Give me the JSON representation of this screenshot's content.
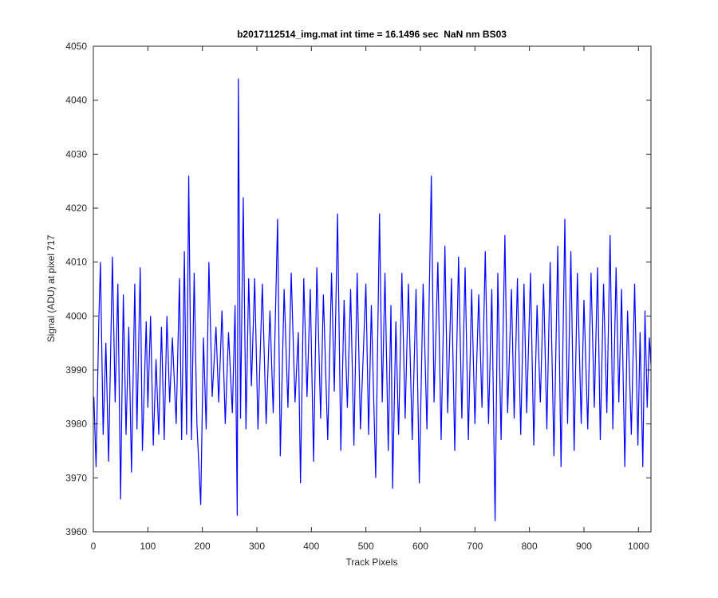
{
  "chart_data": {
    "type": "line",
    "title": "b2017112514_img.mat int time = 16.1496 sec  NaN nm BS03",
    "xlabel": "Track Pixels",
    "ylabel": "Signal (ADU) at pixel 717",
    "xlim": [
      0,
      1023
    ],
    "ylim": [
      3960,
      4050
    ],
    "xticks": [
      0,
      100,
      200,
      300,
      400,
      500,
      600,
      700,
      800,
      900,
      1000
    ],
    "yticks": [
      3960,
      3970,
      3980,
      3990,
      4000,
      4010,
      4020,
      4030,
      4040,
      4050
    ],
    "color": "#0000ff",
    "x": [
      1,
      5,
      10,
      13,
      18,
      23,
      28,
      35,
      40,
      45,
      50,
      55,
      60,
      65,
      70,
      76,
      80,
      86,
      90,
      97,
      100,
      105,
      110,
      115,
      120,
      125,
      130,
      135,
      140,
      145,
      152,
      158,
      162,
      167,
      171,
      175,
      180,
      185,
      190,
      197,
      202,
      207,
      212,
      218,
      225,
      230,
      236,
      242,
      248,
      255,
      260,
      264,
      266,
      270,
      275,
      280,
      285,
      290,
      296,
      302,
      310,
      317,
      324,
      330,
      338,
      343,
      350,
      357,
      363,
      370,
      376,
      380,
      386,
      392,
      398,
      404,
      410,
      417,
      422,
      430,
      437,
      442,
      448,
      454,
      460,
      466,
      472,
      478,
      484,
      490,
      500,
      505,
      510,
      518,
      525,
      530,
      535,
      541,
      546,
      549,
      555,
      560,
      566,
      572,
      578,
      585,
      592,
      598,
      605,
      612,
      620,
      625,
      632,
      638,
      645,
      650,
      657,
      663,
      670,
      676,
      682,
      688,
      694,
      700,
      707,
      713,
      719,
      725,
      731,
      737,
      742,
      748,
      755,
      760,
      767,
      772,
      778,
      784,
      790,
      795,
      802,
      808,
      814,
      820,
      826,
      832,
      838,
      845,
      852,
      858,
      865,
      870,
      876,
      882,
      888,
      895,
      900,
      907,
      913,
      919,
      925,
      930,
      936,
      942,
      948,
      953,
      959,
      964,
      969,
      975,
      980,
      987,
      993,
      999,
      1003,
      1008,
      1012,
      1016,
      1020,
      1023
    ],
    "values": [
      3985,
      3972,
      3999,
      4010,
      3978,
      3995,
      3973,
      4011,
      3984,
      4006,
      3966,
      4004,
      3978,
      3998,
      3971,
      4006,
      3979,
      4009,
      3975,
      3999,
      3983,
      4000,
      3976,
      3992,
      3978,
      3998,
      3977,
      4000,
      3984,
      3996,
      3980,
      4007,
      3977,
      4012,
      3978,
      4026,
      3977,
      4008,
      3980,
      3965,
      3996,
      3979,
      4010,
      3985,
      3998,
      3984,
      4001,
      3980,
      3997,
      3982,
      4002,
      3963,
      4044,
      3981,
      4022,
      3979,
      4007,
      3987,
      4007,
      3979,
      4006,
      3980,
      4001,
      3982,
      4018,
      3974,
      4005,
      3983,
      4008,
      3984,
      3997,
      3969,
      4007,
      3985,
      4005,
      3973,
      4009,
      3981,
      4004,
      3977,
      4008,
      3986,
      4019,
      3975,
      4003,
      3983,
      4005,
      3976,
      4008,
      3979,
      4006,
      3978,
      4002,
      3970,
      4019,
      3984,
      4008,
      3975,
      4002,
      3968,
      3999,
      3978,
      4008,
      3981,
      4006,
      3977,
      4005,
      3969,
      4006,
      3979,
      4026,
      3984,
      4010,
      3977,
      4013,
      3982,
      4007,
      3975,
      4011,
      3981,
      4009,
      3977,
      4005,
      3980,
      4004,
      3983,
      4012,
      3980,
      4005,
      3962,
      4008,
      3977,
      4015,
      3982,
      4005,
      3981,
      4007,
      3978,
      4006,
      3982,
      4008,
      3976,
      4002,
      3984,
      4006,
      3979,
      4010,
      3974,
      4013,
      3972,
      4018,
      3980,
      4012,
      3975,
      4008,
      3980,
      4003,
      3979,
      4008,
      3983,
      4009,
      3977,
      4006,
      3982,
      4015,
      3979,
      4009,
      3984,
      4005,
      3972,
      4001,
      3978,
      4006,
      3976,
      3997,
      3972,
      4001,
      3983,
      3996,
      3991
    ]
  }
}
